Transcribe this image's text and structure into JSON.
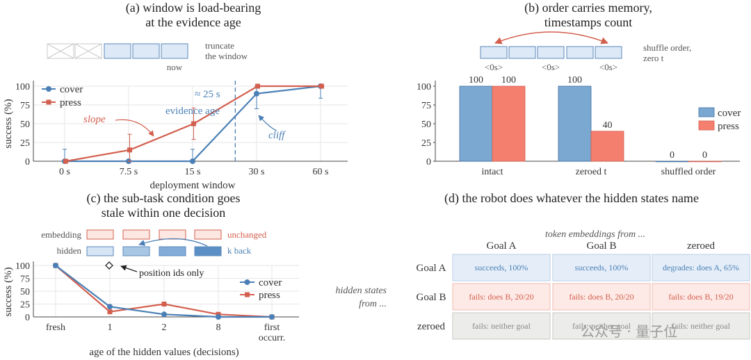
{
  "colors": {
    "cover": "#4a7fb5",
    "press": "#d35f4e",
    "cover_bar": "#7aa8d0",
    "press_bar": "#f57f6f",
    "dash": "#4a7fb5"
  },
  "panel_a": {
    "title_line1": "(a) window is load-bearing",
    "title_line2": "at the evidence age",
    "schematic_label_1": "truncate",
    "schematic_label_2": "the window",
    "now_label": "now",
    "evidence_label_1": "evidence age",
    "evidence_label_2": "≈ 25 s",
    "slope_label": "slope",
    "cliff_label": "cliff"
  },
  "panel_b": {
    "title_line1": "(b) order carries memory,",
    "title_line2": "timestamps count",
    "schematic_label_1": "shuffle order,",
    "schematic_label_2": "zero t",
    "box_labels": [
      "<0s>",
      "<0s>",
      "<0s>"
    ]
  },
  "panel_c": {
    "title_line1": "(c) the sub-task condition goes",
    "title_line2": "stale within one decision",
    "embedding_label": "embedding",
    "hidden_label": "hidden",
    "unchanged_label": "unchanged",
    "kback_label": "k back",
    "position_note": "position ids only"
  },
  "panel_d": {
    "title": "(d) the robot does whatever the hidden states name",
    "col_caption": "token embeddings from ...",
    "row_caption_1": "hidden states",
    "row_caption_2": "from ...",
    "columns": [
      "Goal A",
      "Goal B",
      "zeroed"
    ],
    "rows": [
      {
        "label": "Goal A",
        "cells": [
          "succeeds, 100%",
          "succeeds, 100%",
          "degrades: does A, 65%"
        ],
        "kind": "good"
      },
      {
        "label": "Goal B",
        "cells": [
          "fails: does B, 20/20",
          "fails: does B, 20/20",
          "fails: does B, 19/20"
        ],
        "kind": "bad"
      },
      {
        "label": "zeroed",
        "cells": [
          "fails: neither goal",
          "fails: neither goal",
          "fails: neither goal"
        ],
        "kind": "neutral"
      }
    ]
  },
  "watermark": "公众号 · 量子位",
  "chart_data": [
    {
      "type": "line",
      "xlabel": "deployment window",
      "ylabel": "success (%)",
      "categories": [
        "0 s",
        "7.5 s",
        "15 s",
        "30 s",
        "60 s"
      ],
      "ylim": [
        0,
        100
      ],
      "yticks": [
        0,
        25,
        50,
        75,
        100
      ],
      "legend": "top-left",
      "grid": true,
      "evidence_age_x": 25,
      "series": [
        {
          "name": "cover",
          "values": [
            0,
            0,
            0,
            90,
            100
          ],
          "err": [
            16,
            0,
            16,
            20,
            16
          ]
        },
        {
          "name": "press",
          "values": [
            0,
            15,
            50,
            100,
            100
          ],
          "err": [
            0,
            21,
            21,
            0,
            0
          ]
        }
      ]
    },
    {
      "type": "bar",
      "categories": [
        "intact",
        "zeroed t",
        "shuffled order"
      ],
      "ylim": [
        0,
        100
      ],
      "yticks": [
        0,
        25,
        50,
        75,
        100
      ],
      "legend": "right",
      "series": [
        {
          "name": "cover",
          "values": [
            100,
            100,
            0
          ]
        },
        {
          "name": "press",
          "values": [
            100,
            40,
            0
          ]
        }
      ]
    },
    {
      "type": "line",
      "xlabel": "age of the hidden values (decisions)",
      "ylabel": "success (%)",
      "categories": [
        "fresh",
        "1",
        "2",
        "8",
        "first occurr."
      ],
      "ylim": [
        0,
        100
      ],
      "yticks": [
        0,
        25,
        50,
        75,
        100
      ],
      "legend": "right",
      "grid": true,
      "position_ids_only_value": 100,
      "series": [
        {
          "name": "cover",
          "values": [
            100,
            20,
            5,
            0,
            0
          ]
        },
        {
          "name": "press",
          "values": [
            100,
            10,
            25,
            5,
            0
          ]
        }
      ]
    }
  ]
}
